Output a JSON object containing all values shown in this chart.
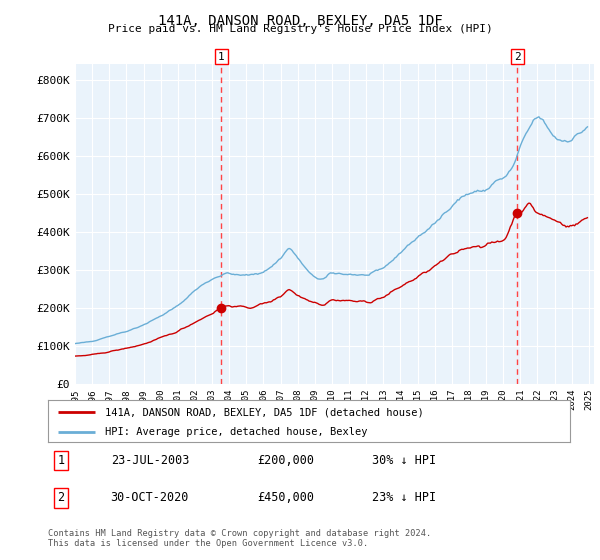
{
  "title": "141A, DANSON ROAD, BEXLEY, DA5 1DF",
  "subtitle": "Price paid vs. HM Land Registry's House Price Index (HPI)",
  "ylim": [
    0,
    840000
  ],
  "yticks": [
    0,
    100000,
    200000,
    300000,
    400000,
    500000,
    600000,
    700000,
    800000
  ],
  "ytick_labels": [
    "£0",
    "£100K",
    "£200K",
    "£300K",
    "£400K",
    "£500K",
    "£600K",
    "£700K",
    "£800K"
  ],
  "hpi_color": "#6aaed6",
  "price_color": "#CC0000",
  "vline_color": "#FF4444",
  "plot_bg_color": "#EAF3FB",
  "background_color": "#FFFFFF",
  "grid_color": "#FFFFFF",
  "legend_label_price": "141A, DANSON ROAD, BEXLEY, DA5 1DF (detached house)",
  "legend_label_hpi": "HPI: Average price, detached house, Bexley",
  "annotation1_date": "23-JUL-2003",
  "annotation1_price": "£200,000",
  "annotation1_pct": "30% ↓ HPI",
  "annotation2_date": "30-OCT-2020",
  "annotation2_price": "£450,000",
  "annotation2_pct": "23% ↓ HPI",
  "footer": "Contains HM Land Registry data © Crown copyright and database right 2024.\nThis data is licensed under the Open Government Licence v3.0.",
  "sale1_year": 2003.55,
  "sale1_price": 200000,
  "sale2_year": 2020.83,
  "sale2_price": 450000
}
